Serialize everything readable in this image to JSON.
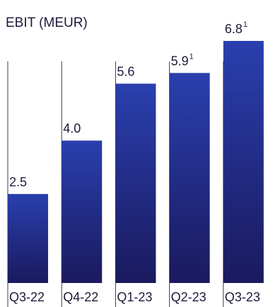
{
  "chart_data": {
    "type": "bar",
    "title": "EBIT (MEUR)",
    "categories": [
      "Q3-22",
      "Q4-22",
      "Q1-23",
      "Q2-23",
      "Q3-23"
    ],
    "values": [
      2.5,
      4.0,
      5.6,
      5.9,
      6.8
    ],
    "value_labels": [
      "2.5",
      "4.0",
      "5.6",
      "5.9",
      "6.8"
    ],
    "footnote_marks": [
      "",
      "",
      "",
      "1",
      "1"
    ],
    "colors": {
      "bar_top": "#2a3fae",
      "bar_bottom": "#1a1a5e",
      "separator": "#3a3760"
    }
  }
}
